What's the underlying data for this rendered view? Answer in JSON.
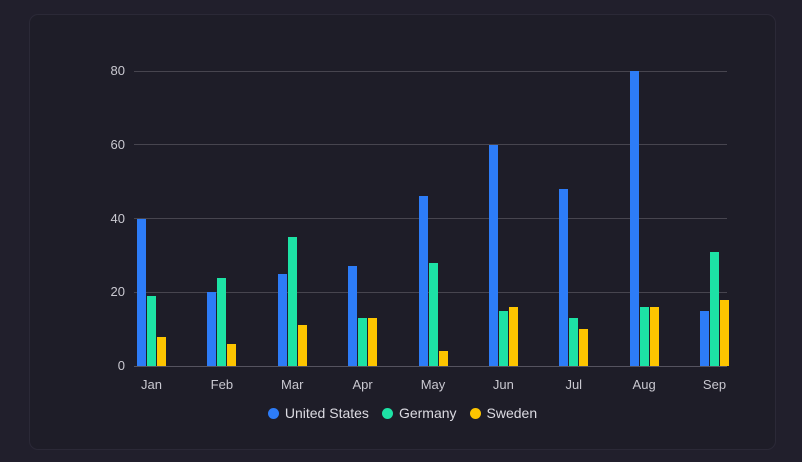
{
  "chart_data": {
    "type": "bar",
    "title": "",
    "xlabel": "",
    "ylabel": "",
    "categories": [
      "Jan",
      "Feb",
      "Mar",
      "Apr",
      "May",
      "Jun",
      "Jul",
      "Aug",
      "Sep"
    ],
    "series": [
      {
        "name": "United States",
        "color": "#2d7cf7",
        "values": [
          40,
          20,
          25,
          27,
          46,
          60,
          48,
          80,
          15
        ]
      },
      {
        "name": "Germany",
        "color": "#1de2a5",
        "values": [
          19,
          24,
          35,
          13,
          28,
          15,
          13,
          16,
          31
        ]
      },
      {
        "name": "Sweden",
        "color": "#fdc500",
        "values": [
          8,
          6,
          11,
          13,
          4,
          16,
          10,
          16,
          18
        ]
      }
    ],
    "ylim": [
      0,
      80
    ],
    "yticks": [
      0,
      20,
      40,
      60,
      80
    ],
    "grid": true,
    "legend_position": "bottom-center"
  },
  "colors": {
    "background": "#211f2c",
    "panel": "#1e1d28",
    "panel_border": "#2b2937",
    "gridline": "#47454f",
    "axis_line": "#55535f",
    "tick_label": "#c9c8d0",
    "legend_text": "#dcdbe2"
  }
}
